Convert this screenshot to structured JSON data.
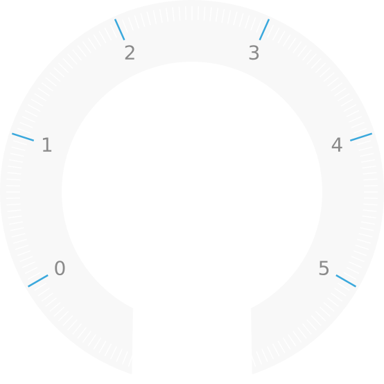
{
  "gauge": {
    "scale_labels": [
      "0",
      "1",
      "2",
      "3",
      "4",
      "5"
    ],
    "min": 0,
    "max": 5,
    "colors": {
      "ring": "#f8f8f8",
      "minor_tick": "#ffffff",
      "major_tick": "#3aa8dc",
      "label": "#8a8a8a",
      "background": "#ffffff"
    }
  }
}
